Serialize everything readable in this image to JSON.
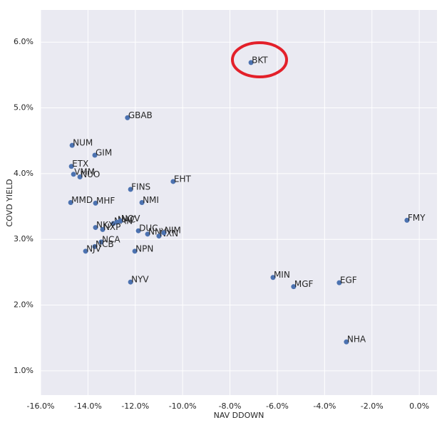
{
  "chart_data": {
    "type": "scatter",
    "x_label": "NAV DDOWN",
    "y_label": "COVD YIELD",
    "color": "#4c72b0",
    "grid": true,
    "labels": [
      "BKT",
      "GBAB",
      "NUM",
      "GIM",
      "ETX",
      "VMM",
      "NUO",
      "EHT",
      "FINS",
      "NMI",
      "MMD",
      "MHF",
      "FMY",
      "NAN",
      "NAC",
      "NQV",
      "NKX",
      "NXP",
      "DUC",
      "NNY",
      "NXN",
      "NIM",
      "NCA",
      "NCB",
      "NJV",
      "NPN",
      "MIN",
      "MGF",
      "EGF",
      "NYV",
      "NHA"
    ],
    "x": [
      -7.11,
      -12.33,
      -14.67,
      -13.71,
      -14.7,
      -14.61,
      -14.34,
      -10.4,
      -12.2,
      -11.72,
      -14.73,
      -13.68,
      -0.52,
      -12.93,
      -12.78,
      -12.63,
      -13.68,
      -13.38,
      -11.87,
      -11.48,
      -11.0,
      -10.79,
      -13.44,
      -13.71,
      -14.1,
      -12.02,
      -6.18,
      -5.31,
      -3.38,
      -12.2,
      -3.08
    ],
    "values": [
      5.69,
      4.85,
      4.43,
      4.28,
      4.11,
      3.99,
      3.95,
      3.88,
      3.76,
      3.56,
      3.56,
      3.55,
      3.29,
      3.24,
      3.26,
      3.28,
      3.18,
      3.15,
      3.13,
      3.08,
      3.05,
      3.1,
      2.96,
      2.89,
      2.82,
      2.82,
      2.42,
      2.28,
      2.34,
      2.35,
      1.44
    ],
    "xlim": [
      -16.0,
      0.75
    ],
    "ylim": [
      0.63,
      6.49
    ],
    "xticks": [
      {
        "value": -16,
        "label": "-16.0%"
      },
      {
        "value": -14,
        "label": "-14.0%"
      },
      {
        "value": -12,
        "label": "-12.0%"
      },
      {
        "value": -10,
        "label": "-10.0%"
      },
      {
        "value": -8,
        "label": "-8.0%"
      },
      {
        "value": -6,
        "label": "-6.0%"
      },
      {
        "value": -4,
        "label": "-4.0%"
      },
      {
        "value": -2,
        "label": "-2.0%"
      },
      {
        "value": 0,
        "label": "0.0%"
      }
    ],
    "yticks": [
      {
        "value": 1,
        "label": "1.0%"
      },
      {
        "value": 2,
        "label": "2.0%"
      },
      {
        "value": 3,
        "label": "3.0%"
      },
      {
        "value": 4,
        "label": "4.0%"
      },
      {
        "value": 5,
        "label": "5.0%"
      },
      {
        "value": 6,
        "label": "6.0%"
      }
    ]
  }
}
